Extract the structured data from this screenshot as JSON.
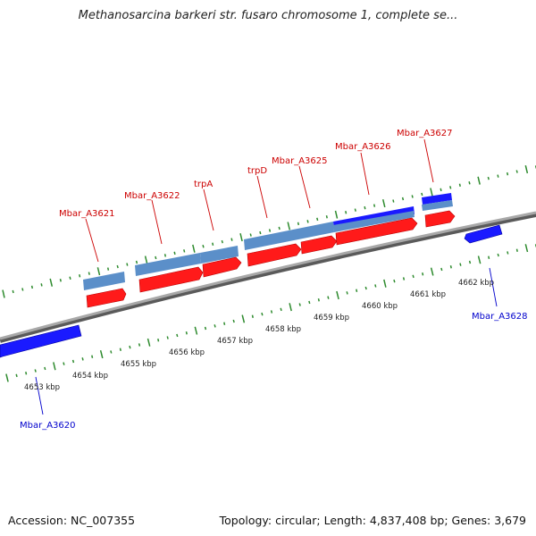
{
  "title": "Methanosarcina barkeri str. fusaro chromosome 1, complete se...",
  "footer": {
    "accession": "Accession: NC_007355",
    "topology": "Topology: circular; Length: 4,837,408 bp; Genes: 3,679"
  },
  "colors": {
    "forward_cds": "#ff1a1a",
    "reverse_cds": "#1a1aff",
    "gene_band": "#5b8fc9",
    "forward_label": "#cc0000",
    "reverse_label": "#0000cc",
    "tick": "#2e8b2e",
    "backbone": "#808080"
  },
  "scale": {
    "unit": "kbp",
    "ticks": [
      {
        "kbp": 4653,
        "label": "4653 kbp"
      },
      {
        "kbp": 4654,
        "label": "4654 kbp"
      },
      {
        "kbp": 4655,
        "label": "4655 kbp"
      },
      {
        "kbp": 4656,
        "label": "4656 kbp"
      },
      {
        "kbp": 4657,
        "label": "4657 kbp"
      },
      {
        "kbp": 4658,
        "label": "4658 kbp"
      },
      {
        "kbp": 4659,
        "label": "4659 kbp"
      },
      {
        "kbp": 4660,
        "label": "4660 kbp"
      },
      {
        "kbp": 4661,
        "label": "4661 kbp"
      },
      {
        "kbp": 4662,
        "label": "4662 kbp"
      }
    ]
  },
  "genes": [
    {
      "name": "Mbar_A3620",
      "strand": "reverse"
    },
    {
      "name": "Mbar_A3621",
      "strand": "forward"
    },
    {
      "name": "Mbar_A3622",
      "strand": "forward"
    },
    {
      "name": "trpA",
      "strand": "forward"
    },
    {
      "name": "trpD",
      "strand": "forward"
    },
    {
      "name": "Mbar_A3625",
      "strand": "forward"
    },
    {
      "name": "Mbar_A3626",
      "strand": "forward"
    },
    {
      "name": "Mbar_A3627",
      "strand": "forward"
    },
    {
      "name": "Mbar_A3628",
      "strand": "reverse"
    }
  ]
}
